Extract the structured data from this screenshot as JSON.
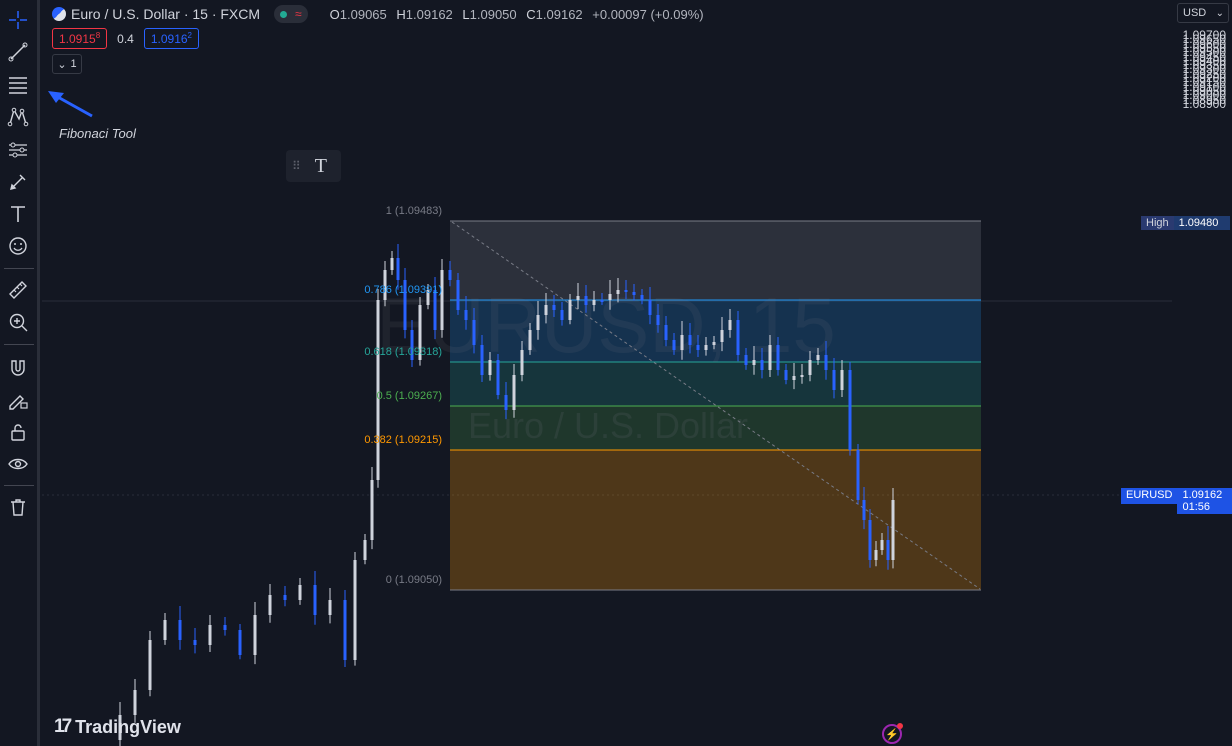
{
  "header": {
    "symbol": "Euro / U.S. Dollar · 15 · FXCM",
    "ohlc": [
      {
        "k": "O",
        "v": "1.09065"
      },
      {
        "k": "H",
        "v": "1.09162"
      },
      {
        "k": "L",
        "v": "1.09050"
      },
      {
        "k": "C",
        "v": "1.09162"
      }
    ],
    "change": "+0.00097 (+0.09%)",
    "status_wave": "≈"
  },
  "quote": {
    "sell": "1.0915",
    "sell_sup": "8",
    "spread": "0.4",
    "buy": "1.0916",
    "buy_sup": "2",
    "collapse_count": "1"
  },
  "annotation": {
    "text": "Fibonaci Tool"
  },
  "text_tool": {
    "glyph": "T",
    "grip": "⠿"
  },
  "watermark": {
    "line1": "EURUSD, 15",
    "line2": "Euro / U.S. Dollar"
  },
  "axis": {
    "currency": "USD",
    "ticks": [
      "1.09700",
      "1.09650",
      "1.09600",
      "1.09550",
      "1.09500",
      "1.09450",
      "1.09400",
      "1.09350",
      "1.09300",
      "1.09250",
      "1.09200",
      "1.09150",
      "1.09100",
      "1.09050",
      "1.09000",
      "1.08950",
      "1.08900"
    ],
    "high_tag": {
      "label": "High",
      "value": "1.09480"
    },
    "symbol_tag": {
      "label": "EURUSD",
      "value": "1.09162",
      "countdown": "01:56"
    }
  },
  "fib_levels": [
    {
      "label": "1 (1.09483)",
      "color": "#787b86"
    },
    {
      "label": "0.786 (1.09391)",
      "color": "#2196f3"
    },
    {
      "label": "0.618 (1.09318)",
      "color": "#26a69a"
    },
    {
      "label": "0.5 (1.09267)",
      "color": "#4caf50"
    },
    {
      "label": "0.382 (1.09215)",
      "color": "#ff9800"
    },
    {
      "label": "0 (1.09050)",
      "color": "#787b86"
    }
  ],
  "branding": {
    "logo": "TradingView",
    "mark": "17"
  },
  "toolbar": {
    "tools": [
      "crosshair-icon",
      "trend-line-icon",
      "fibonacci-icon",
      "pattern-icon",
      "forecast-icon",
      "brush-icon",
      "text-icon",
      "emoji-icon",
      "ruler-icon",
      "zoom-in-icon",
      "magnet-icon",
      "pencil-lock-icon",
      "lock-icon",
      "eye-icon",
      "trash-icon"
    ]
  },
  "colors": {
    "bull": "#cfd3dc",
    "bear": "#2962ff",
    "background": "#131722"
  }
}
